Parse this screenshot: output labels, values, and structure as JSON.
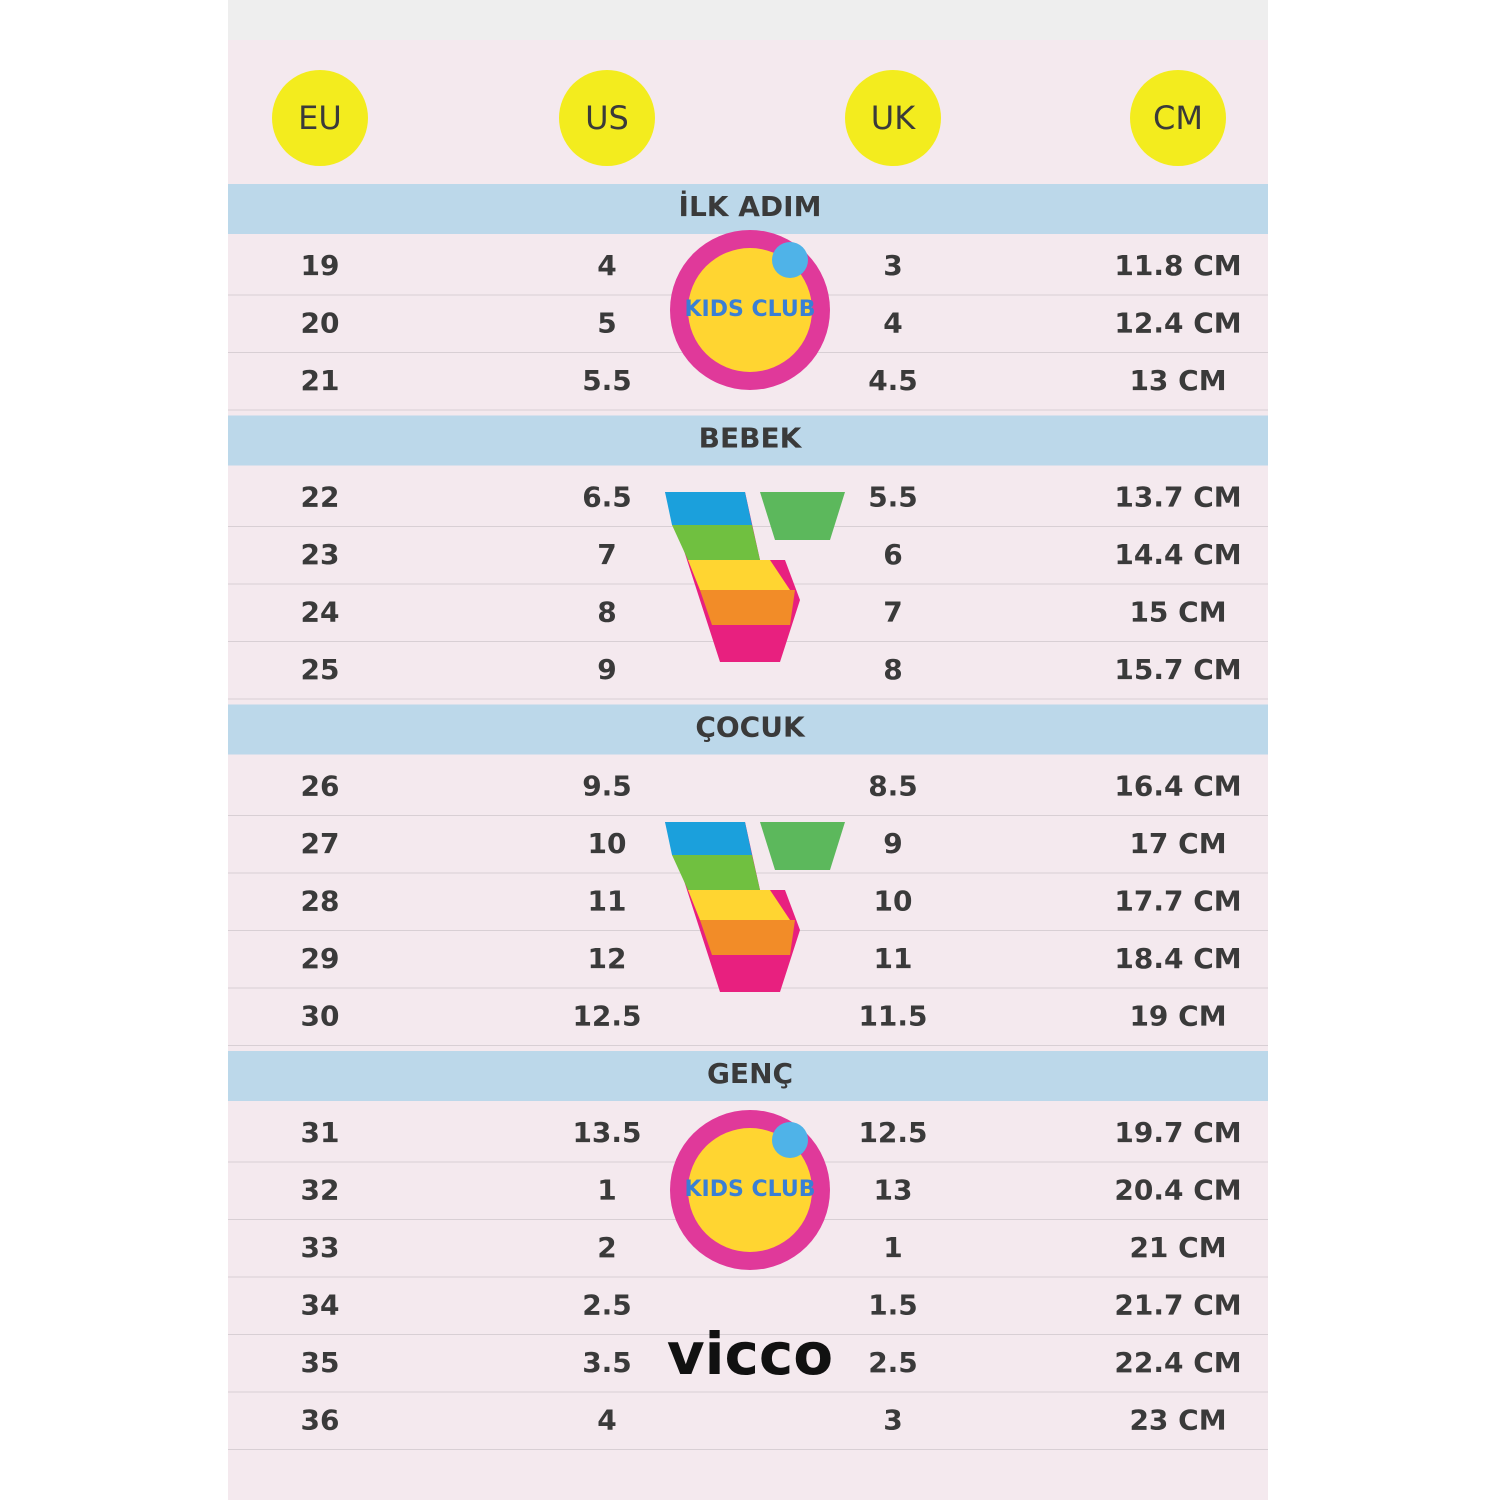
{
  "table": {
    "headers": [
      "EU",
      "US",
      "UK",
      "CM"
    ],
    "sections": [
      {
        "title": "İLK ADIM",
        "rows": [
          [
            "19",
            "4",
            "3",
            "11.8 CM"
          ],
          [
            "20",
            "5",
            "4",
            "12.4 CM"
          ],
          [
            "21",
            "5.5",
            "4.5",
            "13 CM"
          ]
        ]
      },
      {
        "title": "BEBEK",
        "rows": [
          [
            "22",
            "6.5",
            "5.5",
            "13.7 CM"
          ],
          [
            "23",
            "7",
            "6",
            "14.4 CM"
          ],
          [
            "24",
            "8",
            "7",
            "15 CM"
          ],
          [
            "25",
            "9",
            "8",
            "15.7 CM"
          ]
        ]
      },
      {
        "title": "ÇOCUK",
        "rows": [
          [
            "26",
            "9.5",
            "8.5",
            "16.4 CM"
          ],
          [
            "27",
            "10",
            "9",
            "17 CM"
          ],
          [
            "28",
            "11",
            "10",
            "17.7 CM"
          ],
          [
            "29",
            "12",
            "11",
            "18.4 CM"
          ],
          [
            "30",
            "12.5",
            "11.5",
            "19 CM"
          ]
        ]
      },
      {
        "title": "GENÇ",
        "rows": [
          [
            "31",
            "13.5",
            "12.5",
            "19.7 CM"
          ],
          [
            "32",
            "1",
            "13",
            "20.4 CM"
          ],
          [
            "33",
            "2",
            "1",
            "21 CM"
          ],
          [
            "34",
            "2.5",
            "1.5",
            "21.7 CM"
          ],
          [
            "35",
            "3.5",
            "2.5",
            "22.4 CM"
          ],
          [
            "36",
            "4",
            "3",
            "23 CM"
          ]
        ]
      }
    ]
  },
  "logos": {
    "kids_club": "KIDS CLUB",
    "brand": "vicco"
  }
}
